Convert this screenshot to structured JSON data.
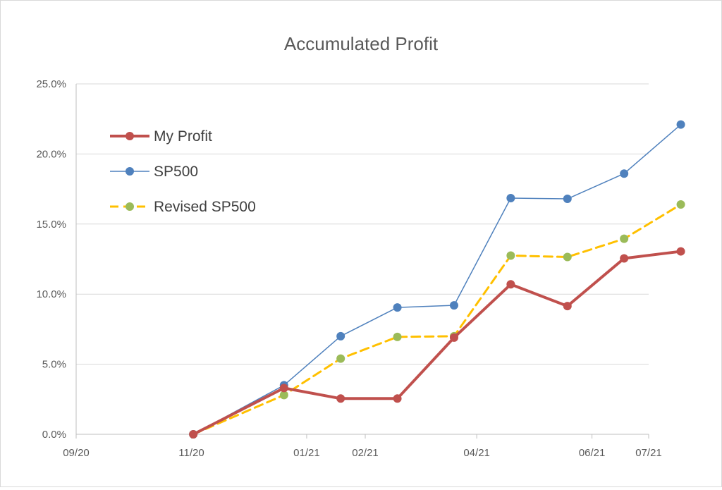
{
  "chart_data": {
    "type": "line",
    "title": "Accumulated Profit",
    "xlabel": "",
    "ylabel": "",
    "x_ticks": [
      "09/20",
      "11/20",
      "01/21",
      "02/21",
      "04/21",
      "06/21",
      "07/21"
    ],
    "x_tick_dates": [
      "2020-09-01",
      "2020-11-01",
      "2021-01-01",
      "2021-02-01",
      "2021-04-01",
      "2021-06-01",
      "2021-07-01"
    ],
    "xlim": [
      "2020-09-01",
      "2021-07-01"
    ],
    "y_ticks": [
      "0.0%",
      "5.0%",
      "10.0%",
      "15.0%",
      "20.0%",
      "25.0%"
    ],
    "ylim": [
      0,
      25
    ],
    "y_unit": "%",
    "grid": "horizontal",
    "legend_position": "top-left",
    "x": [
      "2020-11-02",
      "2020-12-20",
      "2021-01-19",
      "2021-02-18",
      "2021-03-20",
      "2021-04-19",
      "2021-05-19",
      "2021-06-18",
      "2021-07-18"
    ],
    "series": [
      {
        "name": "My Profit",
        "color": "#c0504d",
        "style": "solid-thick",
        "marker": "circle",
        "values": [
          0.0,
          3.3,
          2.55,
          2.55,
          6.9,
          10.7,
          9.15,
          12.55,
          13.05
        ]
      },
      {
        "name": "SP500",
        "color": "#4f81bd",
        "style": "solid-thin",
        "marker": "circle",
        "values": [
          0.0,
          3.5,
          7.0,
          9.05,
          9.2,
          16.85,
          16.8,
          18.6,
          22.1
        ]
      },
      {
        "name": "Revised SP500",
        "color": "#ffc000",
        "marker_color": "#9bbb59",
        "style": "dashed",
        "marker": "circle",
        "values": [
          0.0,
          2.8,
          5.4,
          6.95,
          7.0,
          12.75,
          12.65,
          13.95,
          16.4
        ]
      }
    ]
  }
}
